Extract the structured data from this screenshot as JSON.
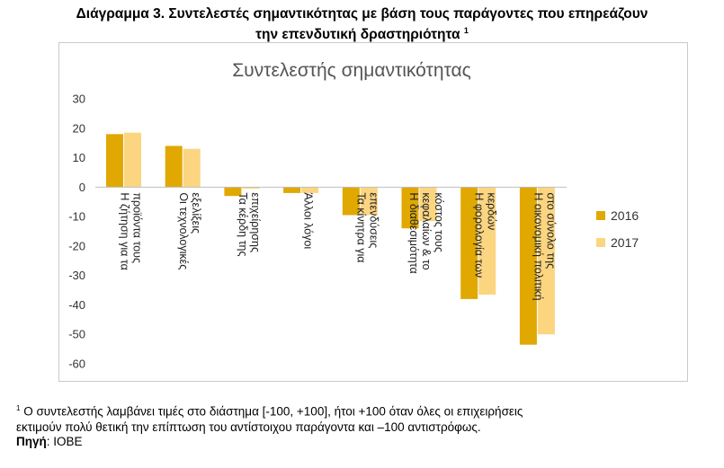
{
  "figure": {
    "title_line1": "Διάγραμμα 3. Συντελεστές σημαντικότητας με βάση τους παράγοντες που επηρεάζουν",
    "title_line2": "την επενδυτική δραστηριότητα",
    "title_sup": "1"
  },
  "footnote": {
    "sup": "1",
    "line1": "Ο συντελεστής λαμβάνει τιμές στο διάστημα [-100, +100], ήτοι +100 όταν όλες οι επιχειρήσεις",
    "line2": "εκτιμούν πολύ θετική την επίπτωση του αντίστοιχου παράγοντα και –100 αντιστρόφως."
  },
  "source": {
    "label": "Πηγή",
    "value": ": ΙΟΒΕ"
  },
  "chart_data": {
    "type": "bar",
    "title": "Συντελεστής σημαντικότητας",
    "categories": [
      [
        "Η ζήτηση για τα",
        "προϊόντα τους"
      ],
      [
        "Οι τεχνολογικές",
        "εξελίξεις"
      ],
      [
        "Τα κέρδη της",
        "επιχείρησης"
      ],
      [
        "Άλλοι λόγοι"
      ],
      [
        "Τα κίνητρα για",
        "επενδύσεις"
      ],
      [
        "Η διαθεσιμότητα",
        "κεφαλαίων & το",
        "κόστος τους"
      ],
      [
        "Η φορολογία των",
        "κερδών"
      ],
      [
        "Η οικονομική πολιτική",
        "στο σύνολο της"
      ]
    ],
    "series": [
      {
        "name": "2016",
        "color": "#e0a800",
        "values": [
          18,
          14,
          -3,
          -2,
          -9.5,
          -14,
          -38,
          -53.5
        ]
      },
      {
        "name": "2017",
        "color": "#fcd581",
        "values": [
          18.5,
          13,
          -0.5,
          -2,
          -9.5,
          -11.5,
          -36.5,
          -50
        ]
      }
    ],
    "ylim": [
      -60,
      30
    ],
    "yticks": [
      30,
      20,
      10,
      0,
      -10,
      -20,
      -30,
      -40,
      -50,
      -60
    ],
    "grid": false,
    "legend_position": "right"
  }
}
